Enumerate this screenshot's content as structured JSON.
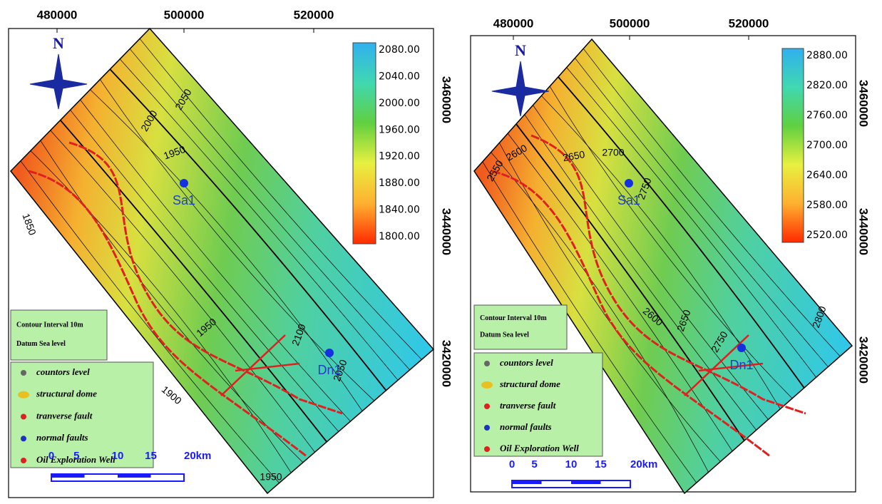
{
  "maps": [
    {
      "north": "N",
      "x_axis_labels": [
        "480000",
        "500000",
        "520000"
      ],
      "y_axis_labels": [
        "3460000",
        "3440000",
        "3420000"
      ],
      "colorbar_labels": [
        "2080.00",
        "2040.00",
        "2000.00",
        "1960.00",
        "1920.00",
        "1880.00",
        "1840.00",
        "1800.00"
      ],
      "contour_labels": [
        "2050",
        "2000",
        "1950",
        "1850",
        "1900",
        "2100",
        "2050",
        "1950",
        "1950"
      ],
      "wells": [
        "Sa1",
        "Dn1"
      ],
      "info": [
        "Contour Interval 10m",
        "Datum   Sea level"
      ],
      "legend": [
        "countors level",
        "structural dome",
        "tranverse fault",
        "normal faults",
        "Oil Exploration Well"
      ],
      "scale": [
        "0",
        "5",
        "10",
        "15",
        "20km"
      ]
    },
    {
      "north": "N",
      "x_axis_labels": [
        "480000",
        "500000",
        "520000"
      ],
      "y_axis_labels": [
        "3460000",
        "3440000",
        "3420000"
      ],
      "colorbar_labels": [
        "2880.00",
        "2820.00",
        "2760.00",
        "2700.00",
        "2640.00",
        "2580.00",
        "2520.00"
      ],
      "contour_labels": [
        "2600",
        "2650",
        "2700",
        "2750",
        "2550",
        "2600",
        "2650",
        "2750",
        "2800"
      ],
      "wells": [
        "Sa1",
        "Dn1"
      ],
      "info": [
        "Contour Interval 10m",
        "Datum   Sea level"
      ],
      "legend": [
        "countors level",
        "structural dome",
        "tranverse fault",
        "normal faults",
        "Oil Exploration Well"
      ],
      "scale": [
        "0",
        "5",
        "10",
        "15",
        "20km"
      ]
    }
  ]
}
